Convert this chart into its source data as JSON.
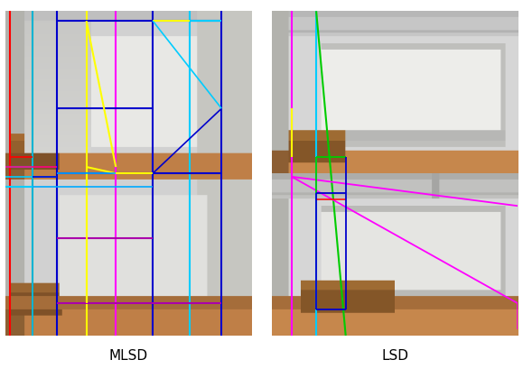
{
  "title_left": "MLSD",
  "title_right": "LSD",
  "figsize": [
    5.79,
    4.09
  ],
  "dpi": 100,
  "bg_color": "#ffffff",
  "label_fontsize": 11,
  "mlsd_lines": [
    {
      "x": [
        0.02,
        0.02
      ],
      "y": [
        1.0,
        0.0
      ],
      "color": "#ff0000",
      "lw": 1.5
    },
    {
      "x": [
        0.11,
        0.11
      ],
      "y": [
        1.0,
        0.0
      ],
      "color": "#00dd00",
      "lw": 1.5
    },
    {
      "x": [
        0.11,
        0.11
      ],
      "y": [
        1.0,
        0.0
      ],
      "color": "#00aaff",
      "lw": 1.2
    },
    {
      "x": [
        0.21,
        0.21
      ],
      "y": [
        1.0,
        0.0
      ],
      "color": "#0000cc",
      "lw": 1.5
    },
    {
      "x": [
        0.33,
        0.33
      ],
      "y": [
        1.0,
        0.0
      ],
      "color": "#ffff00",
      "lw": 1.5
    },
    {
      "x": [
        0.45,
        0.45
      ],
      "y": [
        1.0,
        0.0
      ],
      "color": "#ff00ff",
      "lw": 1.5
    },
    {
      "x": [
        0.6,
        0.6
      ],
      "y": [
        1.0,
        0.0
      ],
      "color": "#0000cc",
      "lw": 1.5
    },
    {
      "x": [
        0.75,
        0.75
      ],
      "y": [
        1.0,
        0.0
      ],
      "color": "#00ccff",
      "lw": 1.5
    },
    {
      "x": [
        0.88,
        0.88
      ],
      "y": [
        1.0,
        0.0
      ],
      "color": "#0000cc",
      "lw": 1.5
    },
    {
      "x": [
        0.0,
        0.11
      ],
      "y": [
        0.52,
        0.52
      ],
      "color": "#00ccff",
      "lw": 1.5
    },
    {
      "x": [
        0.0,
        0.21
      ],
      "y": [
        0.49,
        0.49
      ],
      "color": "#00ccff",
      "lw": 1.2
    },
    {
      "x": [
        0.0,
        0.11
      ],
      "y": [
        0.46,
        0.46
      ],
      "color": "#00ccff",
      "lw": 1.5
    },
    {
      "x": [
        0.21,
        0.88
      ],
      "y": [
        0.97,
        0.97
      ],
      "color": "#0000cc",
      "lw": 1.5
    },
    {
      "x": [
        0.21,
        0.6
      ],
      "y": [
        0.7,
        0.7
      ],
      "color": "#0000cc",
      "lw": 1.5
    },
    {
      "x": [
        0.21,
        0.88
      ],
      "y": [
        0.5,
        0.5
      ],
      "color": "#0000cc",
      "lw": 1.5
    },
    {
      "x": [
        0.6,
        0.88
      ],
      "y": [
        0.5,
        0.7
      ],
      "color": "#0000cc",
      "lw": 1.2
    },
    {
      "x": [
        0.21,
        0.6
      ],
      "y": [
        0.3,
        0.3
      ],
      "color": "#aa00aa",
      "lw": 1.5
    },
    {
      "x": [
        0.21,
        0.88
      ],
      "y": [
        0.1,
        0.1
      ],
      "color": "#aa00aa",
      "lw": 1.5
    },
    {
      "x": [
        0.33,
        0.45
      ],
      "y": [
        0.97,
        0.52
      ],
      "color": "#ffff00",
      "lw": 1.5
    },
    {
      "x": [
        0.33,
        0.45
      ],
      "y": [
        0.52,
        0.5
      ],
      "color": "#ffff00",
      "lw": 1.5
    },
    {
      "x": [
        0.33,
        0.33
      ],
      "y": [
        0.5,
        0.1
      ],
      "color": "#ffff00",
      "lw": 1.5
    },
    {
      "x": [
        0.21,
        0.6
      ],
      "y": [
        0.5,
        0.5
      ],
      "color": "#00aaff",
      "lw": 1.2
    },
    {
      "x": [
        0.02,
        0.11
      ],
      "y": [
        0.55,
        0.55
      ],
      "color": "#ff0000",
      "lw": 1.2
    },
    {
      "x": [
        0.75,
        0.88
      ],
      "y": [
        0.97,
        0.97
      ],
      "color": "#00ccff",
      "lw": 1.5
    },
    {
      "x": [
        0.6,
        0.75
      ],
      "y": [
        0.97,
        0.97
      ],
      "color": "#ffff00",
      "lw": 1.5
    },
    {
      "x": [
        0.6,
        0.88
      ],
      "y": [
        0.97,
        0.7
      ],
      "color": "#00ccff",
      "lw": 1.2
    },
    {
      "x": [
        0.45,
        0.6
      ],
      "y": [
        0.5,
        0.5
      ],
      "color": "#ffff00",
      "lw": 1.5
    },
    {
      "x": [
        0.11,
        0.21
      ],
      "y": [
        0.49,
        0.49
      ],
      "color": "#0000cc",
      "lw": 1.2
    },
    {
      "x": [
        0.11,
        0.6
      ],
      "y": [
        0.46,
        0.46
      ],
      "color": "#00aaff",
      "lw": 1.2
    },
    {
      "x": [
        0.0,
        0.21
      ],
      "y": [
        0.52,
        0.52
      ],
      "color": "#ff0080",
      "lw": 1.2
    }
  ],
  "lsd_lines": [
    {
      "x": [
        0.08,
        0.08
      ],
      "y": [
        1.0,
        0.0
      ],
      "color": "#ff00ff",
      "lw": 1.5
    },
    {
      "x": [
        0.18,
        0.18
      ],
      "y": [
        1.0,
        0.0
      ],
      "color": "#00ccff",
      "lw": 1.5
    },
    {
      "x": [
        0.18,
        0.3
      ],
      "y": [
        1.0,
        0.0
      ],
      "color": "#00cc00",
      "lw": 1.5
    },
    {
      "x": [
        0.08,
        0.08
      ],
      "y": [
        0.7,
        0.55
      ],
      "color": "#ffff00",
      "lw": 1.5
    },
    {
      "x": [
        0.08,
        1.0
      ],
      "y": [
        0.49,
        0.1
      ],
      "color": "#ff00ff",
      "lw": 1.3
    },
    {
      "x": [
        0.08,
        1.0
      ],
      "y": [
        0.49,
        0.4
      ],
      "color": "#ff00ff",
      "lw": 1.3
    },
    {
      "x": [
        0.18,
        0.3
      ],
      "y": [
        0.55,
        0.55
      ],
      "color": "#00cc00",
      "lw": 1.3
    },
    {
      "x": [
        0.18,
        0.18
      ],
      "y": [
        0.55,
        0.44
      ],
      "color": "#00cc00",
      "lw": 1.3
    },
    {
      "x": [
        0.18,
        0.3
      ],
      "y": [
        0.44,
        0.44
      ],
      "color": "#0000cc",
      "lw": 1.3
    },
    {
      "x": [
        0.3,
        0.3
      ],
      "y": [
        0.55,
        0.44
      ],
      "color": "#0000cc",
      "lw": 1.3
    },
    {
      "x": [
        0.18,
        0.3
      ],
      "y": [
        0.42,
        0.42
      ],
      "color": "#ff0000",
      "lw": 1.1
    },
    {
      "x": [
        0.18,
        0.3
      ],
      "y": [
        0.08,
        0.08
      ],
      "color": "#0000cc",
      "lw": 1.3
    },
    {
      "x": [
        0.18,
        0.18
      ],
      "y": [
        0.44,
        0.08
      ],
      "color": "#0000cc",
      "lw": 1.3
    },
    {
      "x": [
        0.3,
        0.3
      ],
      "y": [
        0.44,
        0.08
      ],
      "color": "#0000cc",
      "lw": 1.3
    },
    {
      "x": [
        1.0,
        1.0
      ],
      "y": [
        0.1,
        0.02
      ],
      "color": "#ff00ff",
      "lw": 1.3
    }
  ]
}
